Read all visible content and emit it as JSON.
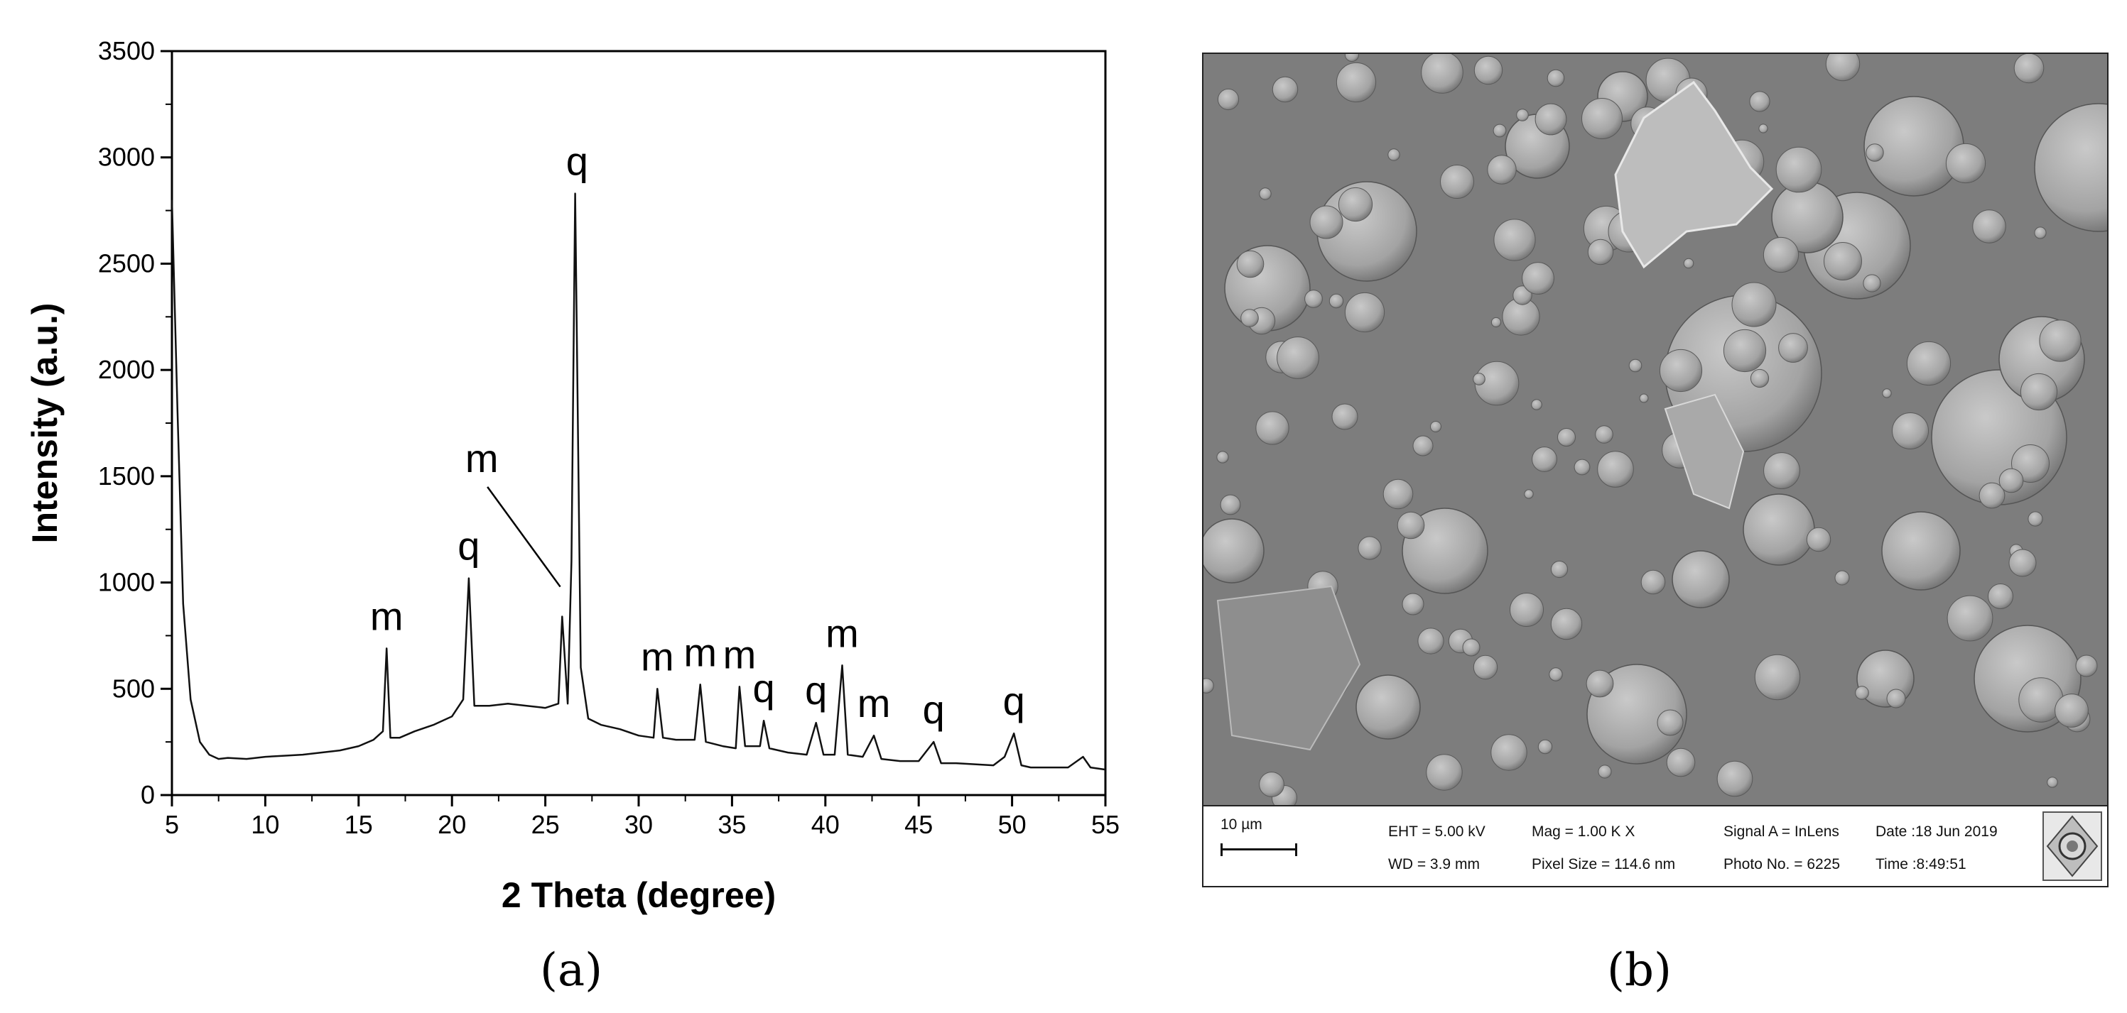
{
  "chart_data": [
    {
      "type": "line",
      "panel_label": "(a)",
      "xlabel": "2 Theta (degree)",
      "ylabel": "Intensity (a.u.)",
      "xlim": [
        5,
        55
      ],
      "ylim": [
        0,
        3500
      ],
      "x_ticks": [
        5,
        10,
        15,
        20,
        25,
        30,
        35,
        40,
        45,
        50,
        55
      ],
      "y_ticks": [
        0,
        500,
        1000,
        1500,
        2000,
        2500,
        3000,
        3500
      ],
      "grid": false,
      "series": [
        {
          "x": [
            5.0,
            5.3,
            5.6,
            6.0,
            6.5,
            7.0,
            7.5,
            8.0,
            9.0,
            10.0,
            11.0,
            12.0,
            13.0,
            14.0,
            15.0,
            15.8,
            16.3,
            16.5,
            16.7,
            17.2,
            18.0,
            19.0,
            20.0,
            20.6,
            20.9,
            21.2,
            22.0,
            23.0,
            24.0,
            25.0,
            25.7,
            25.9,
            26.2,
            26.4,
            26.6,
            26.9,
            27.3,
            28.0,
            29.0,
            30.0,
            30.8,
            31.0,
            31.3,
            32.0,
            33.0,
            33.3,
            33.6,
            34.5,
            35.2,
            35.4,
            35.7,
            36.5,
            36.7,
            37.0,
            38.0,
            39.0,
            39.5,
            39.9,
            40.5,
            40.9,
            41.2,
            42.0,
            42.6,
            43.0,
            44.0,
            45.0,
            45.8,
            46.2,
            47.0,
            48.0,
            49.0,
            49.6,
            50.1,
            50.5,
            51.0,
            52.0,
            53.0,
            53.8,
            54.2,
            55.0
          ],
          "y": [
            2800,
            1800,
            900,
            450,
            250,
            190,
            170,
            175,
            170,
            180,
            185,
            190,
            200,
            210,
            230,
            260,
            300,
            690,
            270,
            270,
            300,
            330,
            370,
            450,
            1020,
            420,
            420,
            430,
            420,
            410,
            430,
            840,
            430,
            1100,
            2830,
            600,
            360,
            330,
            310,
            280,
            270,
            500,
            270,
            260,
            260,
            520,
            250,
            230,
            220,
            510,
            230,
            230,
            350,
            220,
            200,
            190,
            340,
            190,
            190,
            610,
            190,
            180,
            280,
            170,
            160,
            160,
            250,
            150,
            150,
            145,
            140,
            180,
            290,
            140,
            130,
            130,
            130,
            180,
            130,
            120
          ]
        }
      ],
      "annotations": [
        {
          "text": "m",
          "x": 16.5,
          "y": 690
        },
        {
          "text": "q",
          "x": 20.9,
          "y": 1020
        },
        {
          "text": "m",
          "x": 26.2,
          "y": 1100
        },
        {
          "text": "q",
          "x": 26.7,
          "y": 2830
        },
        {
          "text": "m",
          "x": 31.0,
          "y": 500
        },
        {
          "text": "m",
          "x": 33.3,
          "y": 520
        },
        {
          "text": "m",
          "x": 35.4,
          "y": 510
        },
        {
          "text": "q",
          "x": 36.7,
          "y": 350
        },
        {
          "text": "q",
          "x": 39.5,
          "y": 340
        },
        {
          "text": "m",
          "x": 40.9,
          "y": 610
        },
        {
          "text": "m",
          "x": 42.6,
          "y": 280
        },
        {
          "text": "q",
          "x": 45.8,
          "y": 250
        },
        {
          "text": "q",
          "x": 50.1,
          "y": 290
        }
      ]
    }
  ],
  "sem": {
    "panel_label": "(b)",
    "scale": "10 µm",
    "eht": "EHT =  5.00 kV",
    "wd": "WD =  3.9 mm",
    "mag": "Mag =    1.00 K X",
    "pixel_size": "Pixel Size = 114.6 nm",
    "signal": "Signal A = InLens",
    "photo_no": "Photo No. = 6225",
    "date": "Date :18 Jun 2019",
    "time": "Time :8:49:51"
  }
}
